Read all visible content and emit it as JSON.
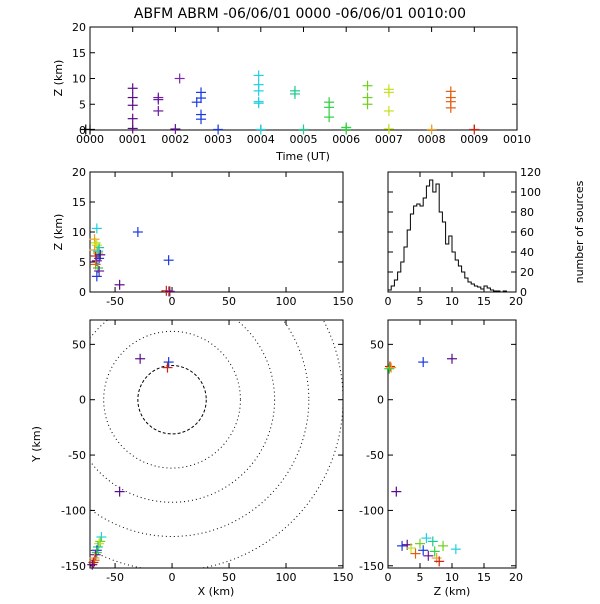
{
  "title": "ABFM ABRM -06/06/01 0000 -06/06/01 0010:00",
  "chart_data": [
    {
      "type": "scatter",
      "panel": "time-height",
      "xlabel": "Time (UT)",
      "ylabel": "Z (km)",
      "xticks": [
        "0000",
        "0001",
        "0002",
        "0003",
        "0004",
        "0005",
        "0006",
        "0007",
        "0008",
        "0009",
        "0010"
      ],
      "yticks": [
        "0",
        "5",
        "10",
        "15",
        "20"
      ],
      "xlim": [
        0,
        10
      ],
      "ylim": [
        0,
        20
      ],
      "points": [
        {
          "t": -0.1,
          "z": 0.1,
          "c": "#000000"
        },
        {
          "t": 0.0,
          "z": 0.1,
          "c": "#000000"
        },
        {
          "t": 1.0,
          "z": 8.1,
          "c": "#5a0a8a"
        },
        {
          "t": 1.0,
          "z": 6.3,
          "c": "#5a0a8a"
        },
        {
          "t": 1.0,
          "z": 4.8,
          "c": "#5a0a8a"
        },
        {
          "t": 1.0,
          "z": 2.2,
          "c": "#5a0a8a"
        },
        {
          "t": 1.0,
          "z": 0.3,
          "c": "#5a0a8a"
        },
        {
          "t": 1.6,
          "z": 6.3,
          "c": "#6a1aa0"
        },
        {
          "t": 1.6,
          "z": 5.9,
          "c": "#6a1aa0"
        },
        {
          "t": 1.6,
          "z": 3.7,
          "c": "#6a1aa0"
        },
        {
          "t": 2.0,
          "z": 0.2,
          "c": "#6a1aa0"
        },
        {
          "t": 2.1,
          "z": 10.0,
          "c": "#7a2ab0"
        },
        {
          "t": 2.5,
          "z": 5.4,
          "c": "#1a3ae0"
        },
        {
          "t": 2.6,
          "z": 7.3,
          "c": "#1a3ae0"
        },
        {
          "t": 2.6,
          "z": 6.2,
          "c": "#1a3ae0"
        },
        {
          "t": 2.6,
          "z": 3.0,
          "c": "#1a3ae0"
        },
        {
          "t": 2.6,
          "z": 2.1,
          "c": "#1a3ae0"
        },
        {
          "t": 3.0,
          "z": 0.1,
          "c": "#1a3ae0"
        },
        {
          "t": 3.95,
          "z": 10.6,
          "c": "#20d0e0"
        },
        {
          "t": 3.95,
          "z": 8.8,
          "c": "#20d0e0"
        },
        {
          "t": 3.95,
          "z": 7.6,
          "c": "#20d0e0"
        },
        {
          "t": 3.95,
          "z": 5.5,
          "c": "#20d0e0"
        },
        {
          "t": 3.95,
          "z": 5.2,
          "c": "#20d0e0"
        },
        {
          "t": 4.0,
          "z": 0.1,
          "c": "#20d0e0"
        },
        {
          "t": 4.8,
          "z": 7.6,
          "c": "#20c890"
        },
        {
          "t": 4.8,
          "z": 7.0,
          "c": "#20c890"
        },
        {
          "t": 5.0,
          "z": 0.1,
          "c": "#20c890"
        },
        {
          "t": 5.6,
          "z": 5.4,
          "c": "#30d040"
        },
        {
          "t": 5.6,
          "z": 4.4,
          "c": "#30d040"
        },
        {
          "t": 5.6,
          "z": 2.5,
          "c": "#30d040"
        },
        {
          "t": 6.0,
          "z": 0.5,
          "c": "#30d040"
        },
        {
          "t": 6.0,
          "z": 0.1,
          "c": "#30d040"
        },
        {
          "t": 6.5,
          "z": 8.6,
          "c": "#70d020"
        },
        {
          "t": 6.5,
          "z": 6.3,
          "c": "#70d020"
        },
        {
          "t": 6.5,
          "z": 5.0,
          "c": "#70d020"
        },
        {
          "t": 7.0,
          "z": 7.9,
          "c": "#c8e020"
        },
        {
          "t": 7.0,
          "z": 7.3,
          "c": "#c8e020"
        },
        {
          "t": 7.0,
          "z": 3.7,
          "c": "#c8e020"
        },
        {
          "t": 7.0,
          "z": 0.2,
          "c": "#c8e020"
        },
        {
          "t": 8.0,
          "z": 0.1,
          "c": "#f0a020"
        },
        {
          "t": 8.45,
          "z": 7.5,
          "c": "#e06010"
        },
        {
          "t": 8.45,
          "z": 6.3,
          "c": "#e06010"
        },
        {
          "t": 8.45,
          "z": 5.5,
          "c": "#e06010"
        },
        {
          "t": 8.45,
          "z": 4.3,
          "c": "#e06010"
        },
        {
          "t": 9.0,
          "z": 0.1,
          "c": "#d02010"
        }
      ]
    },
    {
      "type": "scatter",
      "panel": "x-height",
      "xlabel": "",
      "ylabel": "Z (km)",
      "xticks": [
        "-50",
        "0",
        "50",
        "100",
        "150"
      ],
      "yticks": [
        "0",
        "5",
        "10",
        "15",
        "20"
      ],
      "xlim": [
        -72,
        150
      ],
      "ylim": [
        0,
        20
      ],
      "points": [
        {
          "x": -66,
          "z": 10.6,
          "c": "#20d0e0"
        },
        {
          "x": -68,
          "z": 8.8,
          "c": "#f0a020"
        },
        {
          "x": -66,
          "z": 7.8,
          "c": "#c8e020"
        },
        {
          "x": -64,
          "z": 7.4,
          "c": "#20c890"
        },
        {
          "x": -68,
          "z": 7.0,
          "c": "#f0a020"
        },
        {
          "x": -65,
          "z": 6.5,
          "c": "#70d020"
        },
        {
          "x": -67,
          "z": 6.0,
          "c": "#d02010"
        },
        {
          "x": -64,
          "z": 5.6,
          "c": "#1a3ae0"
        },
        {
          "x": -66,
          "z": 5.2,
          "c": "#6a1aa0"
        },
        {
          "x": -67,
          "z": 4.6,
          "c": "#e06010"
        },
        {
          "x": -65,
          "z": 4.0,
          "c": "#30d040"
        },
        {
          "x": -64,
          "z": 3.5,
          "c": "#6a1aa0"
        },
        {
          "x": -66,
          "z": 2.6,
          "c": "#1a3ae0"
        },
        {
          "x": -67,
          "z": 8.2,
          "c": "#c8e020"
        },
        {
          "x": -65,
          "z": 6.8,
          "c": "#20d0e0"
        },
        {
          "x": -63,
          "z": 6.2,
          "c": "#5a0a8a"
        },
        {
          "x": -46,
          "z": 1.2,
          "c": "#5a0a8a"
        },
        {
          "x": -30,
          "z": 10.0,
          "c": "#1a3ae0"
        },
        {
          "x": -3,
          "z": 5.3,
          "c": "#1a3ae0"
        },
        {
          "x": -5,
          "z": 0.2,
          "c": "#d02010"
        },
        {
          "x": -3,
          "z": 0.1,
          "c": "#e06010"
        },
        {
          "x": -2,
          "z": 0.1,
          "c": "#5a0a8a"
        }
      ]
    },
    {
      "type": "histogram",
      "panel": "height-histogram",
      "xlabel": "",
      "ylabel": "number of sources",
      "xticks": [
        "0",
        "5",
        "10",
        "15",
        "20"
      ],
      "yticks": [
        "0",
        "20",
        "40",
        "60",
        "80",
        "100",
        "120"
      ],
      "xlim": [
        0,
        20
      ],
      "ylim": [
        0,
        120
      ],
      "bin_width": 0.5,
      "counts": [
        2,
        6,
        12,
        20,
        30,
        45,
        62,
        78,
        86,
        88,
        86,
        94,
        106,
        112,
        100,
        108,
        80,
        70,
        48,
        56,
        40,
        32,
        26,
        20,
        14,
        10,
        8,
        6,
        5,
        3,
        6,
        4,
        2,
        1,
        1,
        0,
        1,
        0,
        0,
        0
      ]
    },
    {
      "type": "scatter",
      "panel": "plan-view",
      "xlabel": "X (km)",
      "ylabel": "Y (km)",
      "xticks": [
        "-50",
        "0",
        "50",
        "100",
        "150"
      ],
      "yticks": [
        "-150",
        "-100",
        "-50",
        "0",
        "50"
      ],
      "xlim": [
        -72,
        150
      ],
      "ylim": [
        -152,
        72
      ],
      "range_rings_km": [
        30,
        60,
        90,
        120,
        150
      ],
      "points": [
        {
          "x": -3,
          "y": 34,
          "c": "#1a3ae0"
        },
        {
          "x": -28,
          "y": 37,
          "c": "#5a0a8a"
        },
        {
          "x": -4,
          "y": 29,
          "c": "#d02010"
        },
        {
          "x": -46,
          "y": -83,
          "c": "#5a0a8a"
        },
        {
          "x": -62,
          "y": -124,
          "c": "#20d0e0"
        },
        {
          "x": -63,
          "y": -128,
          "c": "#70d020"
        },
        {
          "x": -64,
          "y": -130,
          "c": "#c8e020"
        },
        {
          "x": -65,
          "y": -133,
          "c": "#20c890"
        },
        {
          "x": -66,
          "y": -136,
          "c": "#1a3ae0"
        },
        {
          "x": -66,
          "y": -138,
          "c": "#30d040"
        },
        {
          "x": -67,
          "y": -140,
          "c": "#6a1aa0"
        },
        {
          "x": -68,
          "y": -143,
          "c": "#f0a020"
        },
        {
          "x": -68,
          "y": -145,
          "c": "#e06010"
        },
        {
          "x": -69,
          "y": -147,
          "c": "#d02010"
        },
        {
          "x": -70,
          "y": -149,
          "c": "#5a0a8a"
        }
      ]
    },
    {
      "type": "scatter",
      "panel": "z-y",
      "xlabel": "Z (km)",
      "ylabel": "",
      "xticks": [
        "0",
        "5",
        "10",
        "15",
        "20"
      ],
      "yticks": [
        "-150",
        "-100",
        "-50",
        "0",
        "50"
      ],
      "xlim": [
        0,
        20
      ],
      "ylim": [
        -152,
        72
      ],
      "points": [
        {
          "z": 0.3,
          "y": 30,
          "c": "#d02010"
        },
        {
          "z": 0.5,
          "y": 29,
          "c": "#f0a020"
        },
        {
          "z": 0.2,
          "y": 28,
          "c": "#30d040"
        },
        {
          "z": 5.5,
          "y": 34,
          "c": "#1a3ae0"
        },
        {
          "z": 10.0,
          "y": 37,
          "c": "#5a0a8a"
        },
        {
          "z": 1.3,
          "y": -83,
          "c": "#5a0a8a"
        },
        {
          "z": 2.2,
          "y": -132,
          "c": "#1a3ae0"
        },
        {
          "z": 3.0,
          "y": -131,
          "c": "#5a0a8a"
        },
        {
          "z": 3.6,
          "y": -134,
          "c": "#c8e020"
        },
        {
          "z": 4.3,
          "y": -139,
          "c": "#e06010"
        },
        {
          "z": 5.0,
          "y": -130,
          "c": "#70d020"
        },
        {
          "z": 5.5,
          "y": -136,
          "c": "#1a3ae0"
        },
        {
          "z": 6.0,
          "y": -125,
          "c": "#20d0e0"
        },
        {
          "z": 6.3,
          "y": -141,
          "c": "#6a1aa0"
        },
        {
          "z": 7.0,
          "y": -128,
          "c": "#20c890"
        },
        {
          "z": 7.3,
          "y": -137,
          "c": "#30d040"
        },
        {
          "z": 7.6,
          "y": -143,
          "c": "#f0a020"
        },
        {
          "z": 8.0,
          "y": -146,
          "c": "#d02010"
        },
        {
          "z": 8.6,
          "y": -132,
          "c": "#70d020"
        },
        {
          "z": 10.6,
          "y": -135,
          "c": "#20d0e0"
        }
      ]
    }
  ]
}
